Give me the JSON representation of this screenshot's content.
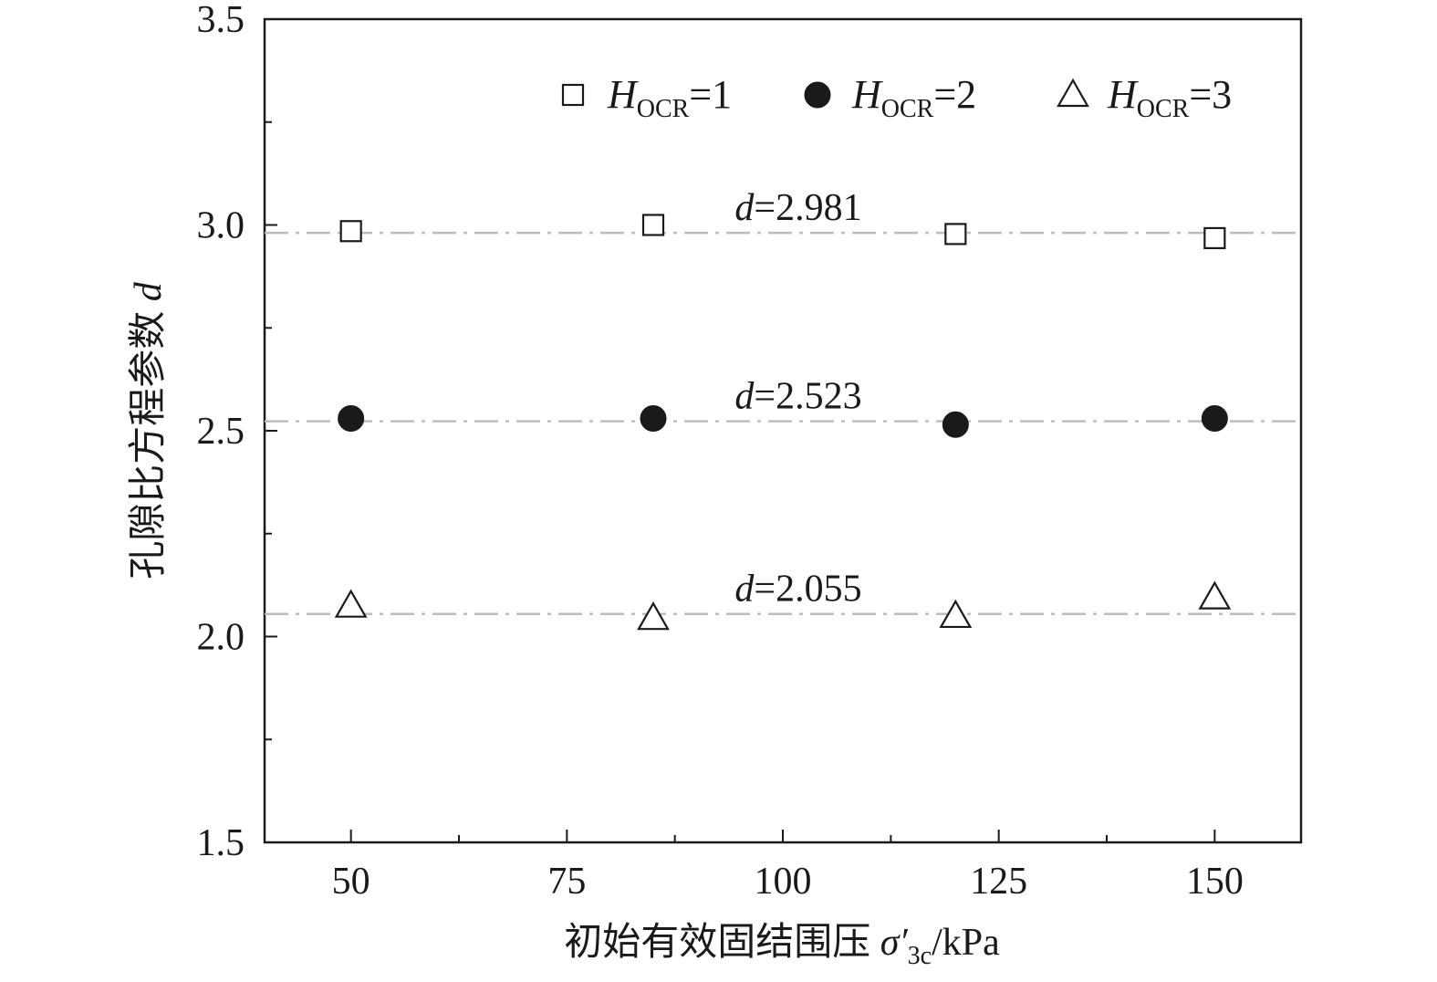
{
  "chart_data": {
    "type": "scatter",
    "title": "",
    "xlabel": {
      "text": "初始有效固结围压 ",
      "symbol": "σ′",
      "subscript": "3c",
      "unit": "/kPa"
    },
    "ylabel": {
      "text": "孔隙比方程参数 ",
      "symbol": "d"
    },
    "xlim": [
      40,
      160
    ],
    "ylim": [
      1.5,
      3.5
    ],
    "x_ticks": [
      50,
      75,
      100,
      125,
      150
    ],
    "x_tick_labels": [
      "50",
      "75",
      "100",
      "125",
      "150"
    ],
    "x_minor_ticks": [
      62.5,
      87.5,
      112.5,
      137.5
    ],
    "y_ticks": [
      1.5,
      2.0,
      2.5,
      3.0,
      3.5
    ],
    "y_tick_labels": [
      "1.5",
      "2.0",
      "2.5",
      "3.0",
      "3.5"
    ],
    "y_minor_ticks": [
      1.75,
      2.25,
      2.75,
      3.25
    ],
    "grid": false,
    "legend_position": "top",
    "series": [
      {
        "name": "H_OCR=1",
        "legend": {
          "symbol": "H",
          "sub": "OCR",
          "rest": "=1"
        },
        "marker": "open-square",
        "x": [
          50,
          85,
          120,
          150
        ],
        "y": [
          2.985,
          3.0,
          2.978,
          2.968
        ],
        "fit_value": 2.981,
        "fit_label": {
          "symbol": "d",
          "rest": "=2.981"
        }
      },
      {
        "name": "H_OCR=2",
        "legend": {
          "symbol": "H",
          "sub": "OCR",
          "rest": "=2"
        },
        "marker": "filled-circle",
        "x": [
          50,
          85,
          120,
          150
        ],
        "y": [
          2.53,
          2.53,
          2.515,
          2.53
        ],
        "fit_value": 2.523,
        "fit_label": {
          "symbol": "d",
          "rest": "=2.523"
        }
      },
      {
        "name": "H_OCR=3",
        "legend": {
          "symbol": "H",
          "sub": "OCR",
          "rest": "=3"
        },
        "marker": "open-triangle",
        "x": [
          50,
          85,
          120,
          150
        ],
        "y": [
          2.075,
          2.045,
          2.05,
          2.095
        ],
        "fit_value": 2.055,
        "fit_label": {
          "symbol": "d",
          "rest": "=2.055"
        }
      }
    ],
    "colors": {
      "axis": "#1a1a1a",
      "marker": "#1a1a1a",
      "fit_line": "#bdbdbd"
    }
  }
}
